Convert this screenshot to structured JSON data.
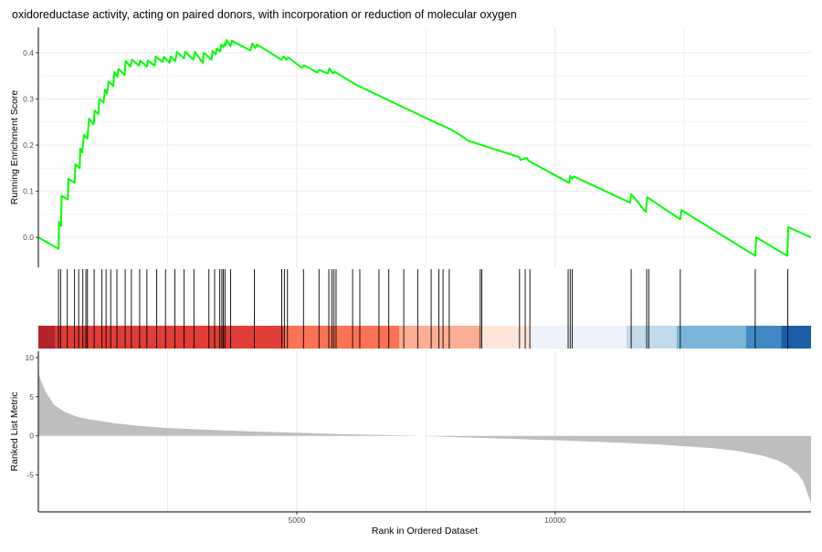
{
  "chart_data": {
    "type": "line",
    "title": "oxidoreductase activity, acting on paired donors, with incorporation or reduction of molecular oxygen",
    "xlabel": "Rank in Ordered Dataset",
    "xlim": [
      0,
      14950
    ],
    "x_ticks": [
      5000,
      10000
    ],
    "grid": true,
    "panels": [
      {
        "name": "running-enrichment",
        "ylabel": "Running Enrichment Score",
        "ylim": [
          -0.065,
          0.455
        ],
        "y_ticks": [
          0.0,
          0.1,
          0.2,
          0.3,
          0.4
        ],
        "line_color": "#00ff00",
        "series": [
          {
            "x": [
              0,
              390,
              400,
              440,
              450,
              570,
              580,
              700,
              720,
              800,
              810,
              850,
              880,
              950,
              980,
              1070,
              1090,
              1160,
              1180,
              1260,
              1290,
              1330,
              1360,
              1450,
              1470,
              1530,
              1550,
              1670,
              1690,
              1780,
              1810,
              1950,
              1970,
              2100,
              2120,
              2250,
              2270,
              2400,
              2430,
              2540,
              2560,
              2650,
              2680,
              2820,
              2840,
              3000,
              3030,
              3180,
              3200,
              3350,
              3370,
              3430,
              3450,
              3520,
              3540,
              3580,
              3600,
              3620,
              3640,
              3720,
              3740,
              4100,
              4140,
              4200,
              4230,
              4700,
              4740,
              4800,
              4830,
              5100,
              5140,
              5400,
              5430,
              5600,
              5630,
              5700,
              5730,
              6100,
              6140,
              7700,
              8000,
              8250,
              8300,
              9300,
              9330,
              9450,
              9480,
              10270,
              10290,
              10330,
              10360,
              11450,
              11470,
              11750,
              11780,
              12420,
              12440,
              13870,
              13890,
              14490,
              14510,
              14950
            ],
            "y": [
              0.0,
              -0.025,
              0.033,
              0.025,
              0.09,
              0.082,
              0.127,
              0.118,
              0.158,
              0.15,
              0.192,
              0.184,
              0.222,
              0.214,
              0.257,
              0.245,
              0.275,
              0.267,
              0.3,
              0.292,
              0.32,
              0.312,
              0.338,
              0.328,
              0.358,
              0.348,
              0.365,
              0.352,
              0.382,
              0.37,
              0.385,
              0.372,
              0.383,
              0.37,
              0.383,
              0.372,
              0.392,
              0.38,
              0.391,
              0.378,
              0.392,
              0.382,
              0.402,
              0.388,
              0.402,
              0.385,
              0.402,
              0.378,
              0.4,
              0.385,
              0.404,
              0.397,
              0.409,
              0.403,
              0.418,
              0.412,
              0.42,
              0.416,
              0.428,
              0.414,
              0.426,
              0.405,
              0.42,
              0.41,
              0.418,
              0.385,
              0.392,
              0.385,
              0.39,
              0.367,
              0.373,
              0.357,
              0.363,
              0.355,
              0.366,
              0.355,
              0.359,
              0.334,
              0.331,
              0.248,
              0.233,
              0.215,
              0.21,
              0.174,
              0.168,
              0.172,
              0.166,
              0.118,
              0.133,
              0.127,
              0.132,
              0.075,
              0.094,
              0.055,
              0.087,
              0.039,
              0.059,
              -0.04,
              0.0,
              -0.04,
              0.022,
              0.0
            ]
          }
        ]
      },
      {
        "name": "gene-hits",
        "hit_positions": [
          390,
          430,
          560,
          700,
          780,
          860,
          920,
          950,
          1080,
          1230,
          1310,
          1400,
          1520,
          1680,
          1800,
          1960,
          2100,
          2290,
          2460,
          2640,
          2820,
          3010,
          3300,
          3410,
          3510,
          3550,
          3580,
          3610,
          3720,
          4180,
          4710,
          4760,
          4820,
          5130,
          5430,
          5620,
          5680,
          5720,
          5760,
          6080,
          6220,
          6590,
          6780,
          7070,
          7340,
          7600,
          7750,
          7830,
          7950,
          8550,
          8580,
          9310,
          9420,
          9510,
          10250,
          10290,
          10330,
          11470,
          11770,
          11810,
          12420,
          13870,
          14500
        ],
        "color_bands": [
          {
            "from": 0,
            "to": 330,
            "color": "#b2242a"
          },
          {
            "from": 330,
            "to": 4750,
            "color": "#e03d36"
          },
          {
            "from": 4750,
            "to": 6980,
            "color": "#fb7255"
          },
          {
            "from": 6980,
            "to": 8560,
            "color": "#fbae93"
          },
          {
            "from": 8560,
            "to": 9510,
            "color": "#fee4d8"
          },
          {
            "from": 9510,
            "to": 11380,
            "color": "#eef2fa"
          },
          {
            "from": 11380,
            "to": 12350,
            "color": "#c2dae9"
          },
          {
            "from": 12350,
            "to": 13690,
            "color": "#79b6d9"
          },
          {
            "from": 13690,
            "to": 14370,
            "color": "#3f8ac3"
          },
          {
            "from": 14370,
            "to": 14950,
            "color": "#1c5ea6"
          }
        ]
      },
      {
        "name": "ranked-list",
        "ylabel": "Ranked List Metric",
        "ylim": [
          -9.7,
          10.8
        ],
        "y_ticks": [
          -5,
          0,
          5,
          10
        ],
        "fill_color": "#bebebe",
        "series": [
          {
            "x": [
              0,
              60,
              150,
              300,
              500,
              750,
              1000,
              1500,
              2000,
              2500,
              3000,
              4000,
              5000,
              6000,
              7000,
              7400,
              8000,
              9000,
              10000,
              11000,
              12000,
              13000,
              13500,
              14000,
              14300,
              14500,
              14700,
              14800,
              14880,
              14950
            ],
            "y": [
              8.0,
              6.9,
              5.5,
              4.0,
              3.1,
              2.45,
              2.1,
              1.6,
              1.25,
              1.0,
              0.85,
              0.6,
              0.4,
              0.2,
              0.07,
              0.0,
              -0.15,
              -0.35,
              -0.55,
              -0.8,
              -1.1,
              -1.55,
              -1.9,
              -2.5,
              -3.1,
              -3.8,
              -4.9,
              -5.8,
              -7.3,
              -8.6
            ]
          }
        ]
      }
    ]
  }
}
